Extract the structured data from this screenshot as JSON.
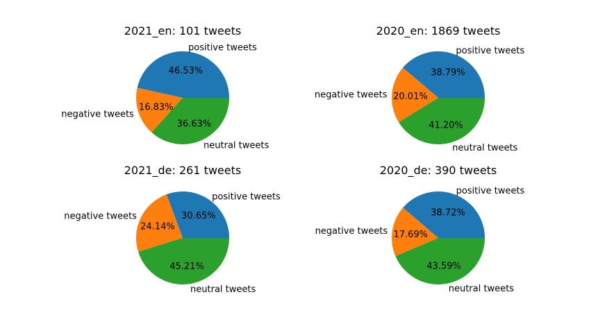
{
  "chart_data": [
    {
      "type": "pie",
      "title": "2021_en: 101 tweets",
      "labels": [
        "positive tweets",
        "negative tweets",
        "neutral tweets"
      ],
      "values": [
        46.53,
        16.83,
        36.63
      ],
      "value_labels": [
        "46.53%",
        "16.83%",
        "36.63%"
      ],
      "colors": [
        "#1f77b4",
        "#ff7f0e",
        "#2ca02c"
      ]
    },
    {
      "type": "pie",
      "title": "2020_en: 1869 tweets",
      "labels": [
        "positive tweets",
        "negative tweets",
        "neutral tweets"
      ],
      "values": [
        38.79,
        20.01,
        41.2
      ],
      "value_labels": [
        "38.79%",
        "20.01%",
        "41.20%"
      ],
      "colors": [
        "#1f77b4",
        "#ff7f0e",
        "#2ca02c"
      ]
    },
    {
      "type": "pie",
      "title": "2021_de: 261 tweets",
      "labels": [
        "positive tweets",
        "negative tweets",
        "neutral tweets"
      ],
      "values": [
        30.65,
        24.14,
        45.21
      ],
      "value_labels": [
        "30.65%",
        "24.14%",
        "45.21%"
      ],
      "colors": [
        "#1f77b4",
        "#ff7f0e",
        "#2ca02c"
      ]
    },
    {
      "type": "pie",
      "title": "2020_de: 390 tweets",
      "labels": [
        "positive tweets",
        "negative tweets",
        "neutral tweets"
      ],
      "values": [
        38.72,
        17.69,
        43.59
      ],
      "value_labels": [
        "38.72%",
        "17.69%",
        "43.59%"
      ],
      "colors": [
        "#1f77b4",
        "#ff7f0e",
        "#2ca02c"
      ]
    }
  ]
}
